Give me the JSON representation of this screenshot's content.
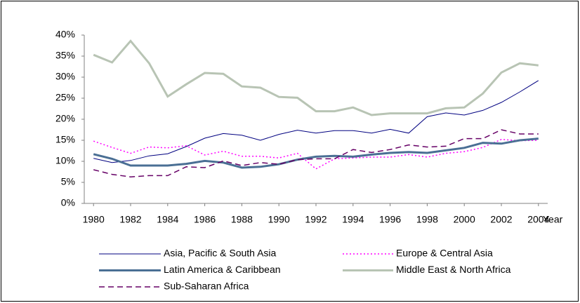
{
  "chart_data": {
    "type": "line",
    "x_label": "Year",
    "x": [
      1980,
      1981,
      1982,
      1983,
      1984,
      1985,
      1986,
      1987,
      1988,
      1989,
      1990,
      1991,
      1992,
      1993,
      1994,
      1995,
      1996,
      1997,
      1998,
      1999,
      2000,
      2001,
      2002,
      2003,
      2004
    ],
    "xlim": [
      1979.5,
      2004.5
    ],
    "xticks": [
      1980,
      1982,
      1984,
      1986,
      1988,
      1990,
      1992,
      1994,
      1996,
      1998,
      2000,
      2002,
      2004
    ],
    "ylim": [
      0,
      40
    ],
    "yticks": [
      {
        "value": 0,
        "label": "0%"
      },
      {
        "value": 5,
        "label": "5%"
      },
      {
        "value": 10,
        "label": "10%"
      },
      {
        "value": 15,
        "label": "15%"
      },
      {
        "value": 20,
        "label": "20%"
      },
      {
        "value": 25,
        "label": "25%"
      },
      {
        "value": 30,
        "label": "30%"
      },
      {
        "value": 35,
        "label": "35%"
      },
      {
        "value": 40,
        "label": "40%"
      }
    ],
    "grid": false,
    "series": [
      {
        "name": "Asia, Pacific & South Asia",
        "color": "#000080",
        "line_style": "solid",
        "width": 1,
        "values": [
          10.7,
          9.7,
          10.2,
          11.3,
          11.8,
          13.5,
          15.5,
          16.6,
          16.2,
          15,
          16.4,
          17.4,
          16.7,
          17.3,
          17.3,
          16.7,
          17.6,
          16.7,
          20.6,
          21.5,
          21,
          22.1,
          24,
          26.5,
          29.2
        ]
      },
      {
        "name": "Europe & Central Asia",
        "color": "#ff00ff",
        "line_style": "dotted",
        "width": 1.5,
        "values": [
          14.8,
          13.3,
          11.9,
          13.4,
          13.2,
          13.7,
          11.5,
          12.4,
          11.2,
          11.2,
          10.8,
          11.9,
          8.2,
          10.6,
          10.8,
          11,
          11,
          11.6,
          11,
          11.9,
          12.3,
          13.3,
          15.2,
          14.9,
          15
        ]
      },
      {
        "name": "Latin America & Caribbean",
        "color": "#4a6f94",
        "line_style": "solid",
        "width": 3,
        "values": [
          11.7,
          10.6,
          9,
          9,
          9,
          9.4,
          10.1,
          9.7,
          8.5,
          8.7,
          9.3,
          10.4,
          11.1,
          11.3,
          11.1,
          11.6,
          12,
          12.2,
          12,
          12.6,
          13.2,
          14.4,
          14.2,
          15,
          15.4
        ]
      },
      {
        "name": "Middle East & North Africa",
        "color": "#b8c4b4",
        "line_style": "solid",
        "width": 3,
        "values": [
          35.3,
          33.5,
          38.6,
          33.3,
          25.4,
          28.3,
          31,
          30.8,
          27.8,
          27.5,
          25.3,
          25.1,
          21.9,
          21.9,
          22.8,
          21,
          21.4,
          21.4,
          21.4,
          22.6,
          22.8,
          26.1,
          31.1,
          33.3,
          32.8
        ]
      },
      {
        "name": "Sub-Saharan Africa",
        "color": "#660066",
        "line_style": "dashed",
        "width": 1.5,
        "values": [
          8,
          6.9,
          6.3,
          6.6,
          6.6,
          8.7,
          8.5,
          10.1,
          9,
          9.7,
          9.3,
          10.4,
          10.6,
          10.6,
          12.8,
          12.1,
          12.8,
          13.9,
          13.4,
          13.6,
          15.4,
          15.4,
          17.5,
          16.5,
          16.5
        ]
      }
    ]
  }
}
